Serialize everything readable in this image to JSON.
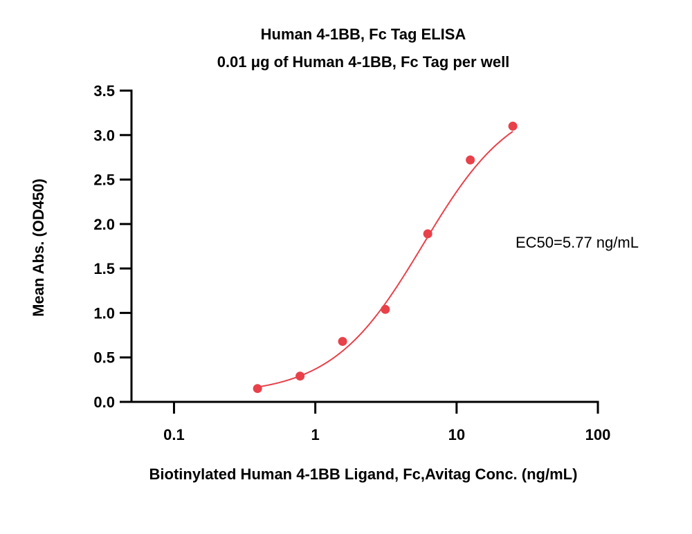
{
  "chart_data": {
    "type": "scatter",
    "title": "Human 4-1BB, Fc Tag ELISA",
    "subtitle": "0.01 μg of Human 4-1BB, Fc Tag per well",
    "xlabel": "Biotinylated Human 4-1BB Ligand, Fc,Avitag Conc. (ng/mL)",
    "ylabel": "Mean Abs. (OD450)",
    "x_scale": "log",
    "xlim": [
      0.05,
      100
    ],
    "ylim": [
      0,
      3.5
    ],
    "x_ticks": [
      {
        "value": 0.1,
        "label": "0.1"
      },
      {
        "value": 1,
        "label": "1"
      },
      {
        "value": 10,
        "label": "10"
      },
      {
        "value": 100,
        "label": "100"
      }
    ],
    "y_ticks": [
      {
        "value": 0.0,
        "label": "0.0"
      },
      {
        "value": 0.5,
        "label": "0.5"
      },
      {
        "value": 1.0,
        "label": "1.0"
      },
      {
        "value": 1.5,
        "label": "1.5"
      },
      {
        "value": 2.0,
        "label": "2.0"
      },
      {
        "value": 2.5,
        "label": "2.5"
      },
      {
        "value": 3.0,
        "label": "3.0"
      },
      {
        "value": 3.5,
        "label": "3.5"
      }
    ],
    "grid": false,
    "color": "#e8414a",
    "series": [
      {
        "x": [
          0.39,
          0.78,
          1.56,
          3.13,
          6.25,
          12.5,
          25
        ],
        "y": [
          0.15,
          0.29,
          0.68,
          1.04,
          1.89,
          2.72,
          3.1
        ]
      }
    ],
    "fit_curve": {
      "type": "4PL",
      "bottom": 0.08,
      "top": 3.45,
      "ec50": 5.77,
      "hill": 1.35
    },
    "annotation": "EC50=5.77 ng/mL"
  }
}
